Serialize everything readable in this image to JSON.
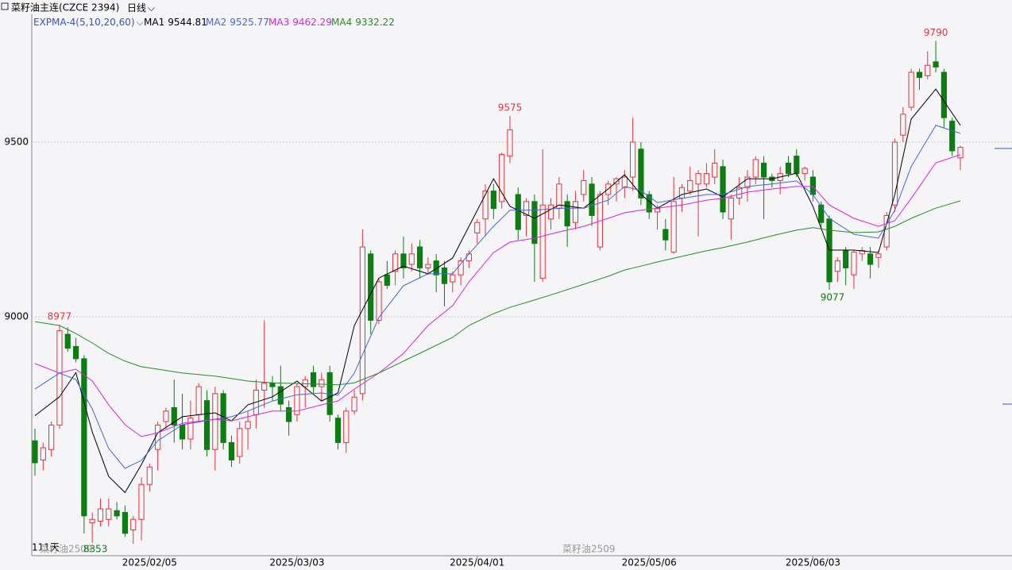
{
  "chart_data": {
    "type": "candlestick",
    "title": "菜籽油主连(CZCE 2394)",
    "period": "日线",
    "indicator": "EXPMA-4(5,10,20,60)",
    "day_count": "111天",
    "contract": "菜籽油2509",
    "up_color": "#e8323c",
    "down_color": "#0c7d10",
    "label_color_high": "#e8323c",
    "label_color_low": "#0c7d10",
    "grid": true,
    "ylim": [
      8316,
      9866
    ],
    "yticks": [
      9000,
      9500
    ],
    "categories": [
      null,
      null,
      null,
      null,
      null,
      null,
      null,
      null,
      null,
      null,
      null,
      null,
      null,
      null,
      "2025/02/05",
      null,
      null,
      null,
      null,
      null,
      null,
      null,
      null,
      null,
      null,
      null,
      null,
      null,
      null,
      null,
      null,
      null,
      "2025/03/03",
      null,
      null,
      null,
      null,
      null,
      null,
      null,
      null,
      null,
      null,
      null,
      null,
      null,
      null,
      null,
      null,
      null,
      null,
      null,
      null,
      null,
      "2025/04/01",
      null,
      null,
      null,
      null,
      null,
      null,
      null,
      null,
      null,
      null,
      null,
      null,
      null,
      null,
      null,
      null,
      null,
      null,
      null,
      null,
      "2025/05/06",
      null,
      null,
      null,
      null,
      null,
      null,
      null,
      null,
      null,
      null,
      null,
      null,
      null,
      null,
      null,
      null,
      null,
      null,
      null,
      "2025/06/03",
      null,
      null,
      null,
      null,
      null,
      null,
      null,
      null,
      null,
      null,
      null,
      null,
      null,
      null,
      null,
      null,
      null,
      null
    ],
    "high_labels": [
      3,
      58,
      110
    ],
    "low_labels": [
      7,
      97
    ],
    "series": [
      {
        "open": [
          8645,
          8590,
          8620,
          8690,
          8950,
          8915,
          8880,
          8410,
          8415,
          8420,
          8445,
          8440,
          8390,
          8420,
          8520,
          8620,
          8700,
          8740,
          8690,
          8650,
          8720,
          8760,
          8620,
          8780,
          8640,
          8600,
          8680,
          8720,
          8790,
          8810,
          8800,
          8740,
          8720,
          8800,
          8840,
          8800,
          8840,
          8710,
          8640,
          8730,
          8780,
          9180,
          8990,
          9120,
          9130,
          9180,
          9150,
          9200,
          9140,
          9160,
          9140,
          9100,
          9120,
          9160,
          9240,
          9280,
          9360,
          9330,
          9460,
          9350,
          9290,
          9330,
          9110,
          9280,
          9310,
          9330,
          9270,
          9350,
          9380,
          9200,
          9350,
          9380,
          9370,
          9400,
          9480,
          9350,
          9300,
          9250,
          9185,
          9340,
          9360,
          9380,
          9380,
          9400,
          9430,
          9280,
          9340,
          9370,
          9400,
          9440,
          9400,
          9390,
          9440,
          9460,
          9410,
          9400,
          9320,
          9280,
          9130,
          9190,
          9120,
          9180,
          9180,
          9170,
          9200,
          9320,
          9520,
          9600,
          9700,
          9690,
          9730,
          9700,
          9560,
          9455
        ],
        "high": [
          8680,
          8640,
          8700,
          8977,
          8970,
          8940,
          8890,
          8440,
          8480,
          8480,
          8470,
          8460,
          8430,
          8540,
          8580,
          8700,
          8740,
          8820,
          8780,
          8760,
          8810,
          8790,
          8800,
          8790,
          8660,
          8700,
          8730,
          8820,
          8990,
          8830,
          8860,
          8760,
          8810,
          8830,
          8860,
          8840,
          8860,
          8720,
          8740,
          8790,
          9250,
          9190,
          9110,
          9160,
          9190,
          9230,
          9210,
          9220,
          9170,
          9180,
          9160,
          9130,
          9170,
          9190,
          9280,
          9380,
          9380,
          9470,
          9575,
          9370,
          9340,
          9350,
          9480,
          9340,
          9400,
          9350,
          9360,
          9420,
          9400,
          9360,
          9390,
          9400,
          9420,
          9570,
          9500,
          9360,
          9320,
          9280,
          9400,
          9380,
          9430,
          9420,
          9440,
          9480,
          9450,
          9350,
          9400,
          9420,
          9460,
          9460,
          9410,
          9430,
          9460,
          9480,
          9430,
          9420,
          9330,
          9290,
          9170,
          9200,
          9190,
          9200,
          9200,
          9190,
          9300,
          9510,
          9600,
          9710,
          9710,
          9760,
          9790,
          9710,
          9570,
          9490
        ],
        "low": [
          8545,
          8560,
          8600,
          8680,
          8900,
          8870,
          8380,
          8353,
          8400,
          8400,
          8420,
          8370,
          8350,
          8360,
          8500,
          8560,
          8680,
          8640,
          8620,
          8620,
          8700,
          8600,
          8560,
          8620,
          8570,
          8580,
          8620,
          8680,
          8740,
          8760,
          8730,
          8660,
          8700,
          8740,
          8780,
          8760,
          8700,
          8620,
          8610,
          8720,
          8760,
          8950,
          8980,
          9080,
          9090,
          9110,
          9130,
          9110,
          9120,
          9070,
          9030,
          9070,
          9090,
          9140,
          9210,
          9230,
          9280,
          9310,
          9440,
          9220,
          9230,
          9100,
          9100,
          9250,
          9280,
          9200,
          9250,
          9330,
          9260,
          9190,
          9320,
          9330,
          9340,
          9360,
          9320,
          9280,
          9250,
          9190,
          9180,
          9300,
          9350,
          9230,
          9370,
          9380,
          9280,
          9220,
          9320,
          9330,
          9380,
          9280,
          9370,
          9350,
          9400,
          9400,
          9390,
          9330,
          9250,
          9077,
          9100,
          9090,
          9080,
          9160,
          9110,
          9140,
          9190,
          9300,
          9500,
          9590,
          9650,
          9680,
          9700,
          9540,
          9460,
          9420
        ],
        "close": [
          8582,
          8625,
          8690,
          8960,
          8910,
          8880,
          8430,
          8420,
          8450,
          8450,
          8430,
          8380,
          8420,
          8520,
          8570,
          8690,
          8730,
          8690,
          8650,
          8710,
          8800,
          8620,
          8780,
          8640,
          8590,
          8680,
          8700,
          8790,
          8810,
          8800,
          8750,
          8700,
          8800,
          8820,
          8800,
          8820,
          8720,
          8640,
          8730,
          8770,
          9200,
          8990,
          9100,
          9090,
          9180,
          9140,
          9180,
          9140,
          9150,
          9120,
          9095,
          9120,
          9160,
          9180,
          9270,
          9360,
          9310,
          9465,
          9535,
          9250,
          9330,
          9210,
          9320,
          9320,
          9380,
          9260,
          9330,
          9390,
          9290,
          9350,
          9380,
          9395,
          9400,
          9500,
          9340,
          9300,
          9310,
          9220,
          9330,
          9370,
          9390,
          9410,
          9410,
          9440,
          9300,
          9340,
          9370,
          9400,
          9450,
          9400,
          9390,
          9410,
          9410,
          9410,
          9425,
          9350,
          9270,
          9100,
          9160,
          9140,
          9185,
          9190,
          9150,
          9180,
          9290,
          9500,
          9580,
          9700,
          9685,
          9720,
          9715,
          9570,
          9475,
          9485
        ]
      }
    ],
    "ma": [
      {
        "name": "MA1",
        "color": "#000000",
        "last": 9544.81,
        "x": [
          0,
          3,
          5,
          7,
          9,
          11,
          13,
          15,
          18,
          22,
          24,
          26,
          29,
          32,
          35,
          37,
          39,
          42,
          45,
          48,
          51,
          53,
          56,
          58,
          61,
          64,
          67,
          70,
          72,
          74,
          76,
          79,
          82,
          84,
          87,
          90,
          93,
          95,
          97,
          100,
          103,
          105,
          107,
          110,
          113
        ],
        "values": [
          8717,
          8771,
          8840,
          8670,
          8543,
          8497,
          8577,
          8668,
          8714,
          8725,
          8702,
          8748,
          8771,
          8816,
          8759,
          8782,
          8975,
          9111,
          9145,
          9123,
          9168,
          9259,
          9395,
          9316,
          9282,
          9320,
          9311,
          9366,
          9407,
          9350,
          9311,
          9350,
          9366,
          9343,
          9395,
          9395,
          9411,
          9316,
          9191,
          9191,
          9184,
          9350,
          9566,
          9652,
          9548
        ]
      },
      {
        "name": "MA2",
        "color": "#4466dd",
        "last": 9525.77,
        "x": [
          0,
          3,
          5,
          7,
          9,
          11,
          13,
          15,
          18,
          22,
          24,
          26,
          29,
          32,
          35,
          37,
          39,
          42,
          45,
          48,
          51,
          53,
          56,
          58,
          61,
          64,
          67,
          70,
          72,
          74,
          76,
          79,
          82,
          84,
          87,
          90,
          93,
          95,
          97,
          100,
          103,
          105,
          107,
          110,
          113
        ],
        "values": [
          8793,
          8839,
          8820,
          8736,
          8623,
          8566,
          8589,
          8645,
          8691,
          8707,
          8714,
          8730,
          8759,
          8777,
          8782,
          8775,
          8839,
          8998,
          9089,
          9123,
          9123,
          9180,
          9259,
          9305,
          9305,
          9311,
          9311,
          9334,
          9373,
          9361,
          9327,
          9339,
          9350,
          9350,
          9373,
          9380,
          9389,
          9350,
          9282,
          9236,
          9225,
          9305,
          9430,
          9548,
          9525
        ]
      },
      {
        "name": "MA3",
        "color": "#e020e0",
        "last": 9462.29,
        "x": [
          0,
          3,
          5,
          7,
          9,
          11,
          13,
          15,
          18,
          22,
          24,
          26,
          29,
          32,
          35,
          37,
          39,
          42,
          45,
          48,
          51,
          53,
          56,
          58,
          61,
          64,
          67,
          70,
          72,
          74,
          76,
          79,
          82,
          84,
          87,
          90,
          93,
          95,
          97,
          100,
          103,
          105,
          107,
          110,
          113
        ],
        "values": [
          8866,
          8839,
          8850,
          8816,
          8748,
          8691,
          8657,
          8668,
          8695,
          8707,
          8702,
          8714,
          8730,
          8730,
          8748,
          8759,
          8793,
          8839,
          8895,
          8975,
          9032,
          9100,
          9184,
          9214,
          9225,
          9243,
          9259,
          9282,
          9298,
          9305,
          9311,
          9320,
          9334,
          9339,
          9357,
          9366,
          9373,
          9373,
          9320,
          9282,
          9259,
          9275,
          9339,
          9441,
          9464
        ]
      },
      {
        "name": "MA4",
        "color": "#209020",
        "last": 9332.22,
        "x": [
          0,
          3,
          5,
          7,
          9,
          11,
          13,
          15,
          18,
          22,
          24,
          26,
          29,
          32,
          35,
          37,
          39,
          42,
          45,
          48,
          51,
          53,
          56,
          58,
          61,
          64,
          67,
          70,
          72,
          74,
          76,
          79,
          82,
          84,
          87,
          90,
          93,
          95,
          97,
          100,
          103,
          105,
          107,
          110,
          113
        ],
        "values": [
          8986,
          8975,
          8952,
          8925,
          8895,
          8873,
          8857,
          8850,
          8839,
          8830,
          8823,
          8816,
          8811,
          8809,
          8807,
          8805,
          8811,
          8839,
          8873,
          8907,
          8941,
          8975,
          9009,
          9027,
          9048,
          9070,
          9093,
          9116,
          9134,
          9145,
          9157,
          9173,
          9189,
          9198,
          9214,
          9232,
          9248,
          9255,
          9248,
          9241,
          9243,
          9259,
          9282,
          9311,
          9332
        ]
      }
    ]
  }
}
